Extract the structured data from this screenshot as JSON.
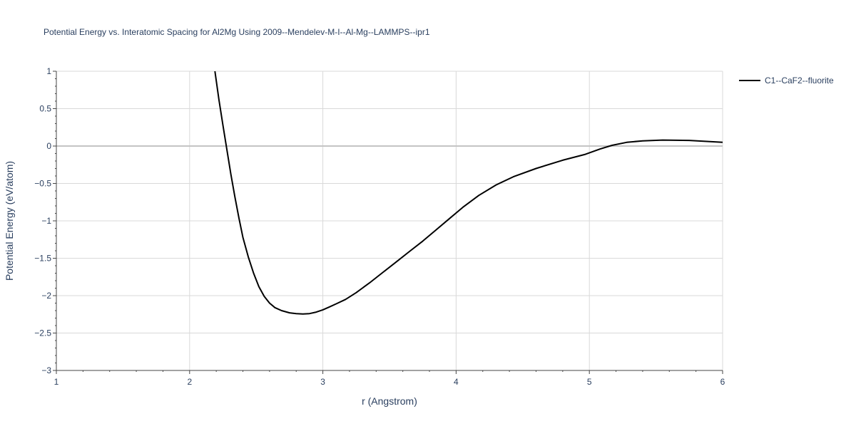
{
  "chart_data": {
    "type": "line",
    "title": "Potential Energy vs. Interatomic Spacing for Al2Mg Using 2009--Mendelev-M-I--Al-Mg--LAMMPS--ipr1",
    "xlabel": "r (Angstrom)",
    "ylabel": "Potential Energy (eV/atom)",
    "xlim": [
      1,
      6
    ],
    "ylim": [
      -3,
      1
    ],
    "x_ticks": [
      1,
      2,
      3,
      4,
      5,
      6
    ],
    "x_tick_labels": [
      "1",
      "2",
      "3",
      "4",
      "5",
      "6"
    ],
    "y_ticks": [
      -3,
      -2.5,
      -2,
      -1.5,
      -1,
      -0.5,
      0,
      0.5,
      1
    ],
    "y_tick_labels": [
      "−3",
      "−2.5",
      "−2",
      "−1.5",
      "−1",
      "−0.5",
      "0",
      "0.5",
      "1"
    ],
    "grid": true,
    "legend_position": "top-right-outside",
    "series": [
      {
        "name": "C1--CaF2--fluorite",
        "color": "#000000",
        "x": [
          2.19,
          2.22,
          2.25,
          2.28,
          2.31,
          2.34,
          2.37,
          2.4,
          2.44,
          2.48,
          2.52,
          2.56,
          2.6,
          2.64,
          2.69,
          2.75,
          2.8,
          2.85,
          2.9,
          2.95,
          3.0,
          3.05,
          3.1,
          3.17,
          3.25,
          3.35,
          3.45,
          3.55,
          3.65,
          3.75,
          3.85,
          3.95,
          4.05,
          4.17,
          4.3,
          4.43,
          4.6,
          4.8,
          4.97,
          5.08,
          5.17,
          5.28,
          5.4,
          5.55,
          5.75,
          6.0
        ],
        "y": [
          1.0,
          0.62,
          0.28,
          -0.05,
          -0.38,
          -0.68,
          -0.96,
          -1.22,
          -1.48,
          -1.7,
          -1.88,
          -2.01,
          -2.1,
          -2.16,
          -2.2,
          -2.23,
          -2.24,
          -2.245,
          -2.24,
          -2.22,
          -2.19,
          -2.15,
          -2.11,
          -2.05,
          -1.96,
          -1.83,
          -1.69,
          -1.55,
          -1.41,
          -1.27,
          -1.12,
          -0.97,
          -0.82,
          -0.66,
          -0.52,
          -0.41,
          -0.3,
          -0.19,
          -0.11,
          -0.04,
          0.01,
          0.05,
          0.07,
          0.08,
          0.075,
          0.05
        ]
      }
    ]
  }
}
